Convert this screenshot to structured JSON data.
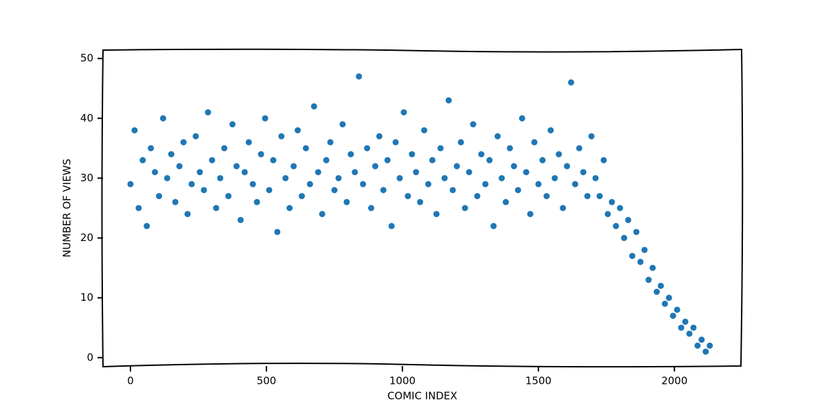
{
  "chart_data": {
    "type": "scatter",
    "x_label": "COMIC INDEX",
    "y_label": "NUMBER OF VIEWS",
    "series": [
      {
        "color": "#1f77b4",
        "x": [
          0,
          15,
          30,
          45,
          60,
          75,
          90,
          105,
          120,
          135,
          150,
          165,
          180,
          195,
          210,
          225,
          240,
          255,
          270,
          285,
          300,
          315,
          330,
          345,
          360,
          375,
          390,
          405,
          420,
          435,
          450,
          465,
          480,
          495,
          510,
          525,
          540,
          555,
          570,
          585,
          600,
          615,
          630,
          645,
          660,
          675,
          690,
          705,
          720,
          735,
          750,
          765,
          780,
          795,
          810,
          825,
          840,
          855,
          870,
          885,
          900,
          915,
          930,
          945,
          960,
          975,
          990,
          1005,
          1020,
          1035,
          1050,
          1065,
          1080,
          1095,
          1110,
          1125,
          1140,
          1155,
          1170,
          1185,
          1200,
          1215,
          1230,
          1245,
          1260,
          1275,
          1290,
          1305,
          1320,
          1335,
          1350,
          1365,
          1380,
          1395,
          1410,
          1425,
          1440,
          1455,
          1470,
          1485,
          1500,
          1515,
          1530,
          1545,
          1560,
          1575,
          1590,
          1605,
          1620,
          1635,
          1650,
          1665,
          1680,
          1695,
          1710,
          1725,
          1740,
          1755,
          1770,
          1785,
          1800,
          1815,
          1830,
          1845,
          1860,
          1875,
          1890,
          1905,
          1920,
          1935,
          1950,
          1965,
          1980,
          1995,
          2010,
          2025,
          2040,
          2055,
          2070,
          2085,
          2100,
          2115,
          2130
        ],
        "values": [
          29,
          38,
          25,
          33,
          22,
          35,
          31,
          27,
          40,
          30,
          34,
          26,
          32,
          36,
          24,
          29,
          37,
          31,
          28,
          41,
          33,
          25,
          30,
          35,
          27,
          39,
          32,
          23,
          31,
          36,
          29,
          26,
          34,
          40,
          28,
          33,
          21,
          37,
          30,
          25,
          32,
          38,
          27,
          35,
          29,
          42,
          31,
          24,
          33,
          36,
          28,
          30,
          39,
          26,
          34,
          31,
          47,
          29,
          35,
          25,
          32,
          37,
          28,
          33,
          22,
          36,
          30,
          41,
          27,
          34,
          31,
          26,
          38,
          29,
          33,
          24,
          35,
          30,
          43,
          28,
          32,
          36,
          25,
          31,
          39,
          27,
          34,
          29,
          33,
          22,
          37,
          30,
          26,
          35,
          32,
          28,
          40,
          31,
          24,
          36,
          29,
          33,
          27,
          38,
          30,
          34,
          25,
          32,
          46,
          29,
          35,
          31,
          27,
          37,
          30,
          27,
          33,
          24,
          26,
          22,
          25,
          20,
          23,
          17,
          21,
          16,
          18,
          13,
          15,
          11,
          12,
          9,
          10,
          7,
          8,
          5,
          6,
          4,
          5,
          2,
          3,
          1,
          2
        ]
      }
    ],
    "xlim": [
      -101,
      2247
    ],
    "ylim": [
      -1.4,
      51.4
    ],
    "xticks": [
      0,
      500,
      1000,
      1500,
      2000
    ],
    "yticks": [
      0,
      10,
      20,
      30,
      40,
      50
    ]
  }
}
